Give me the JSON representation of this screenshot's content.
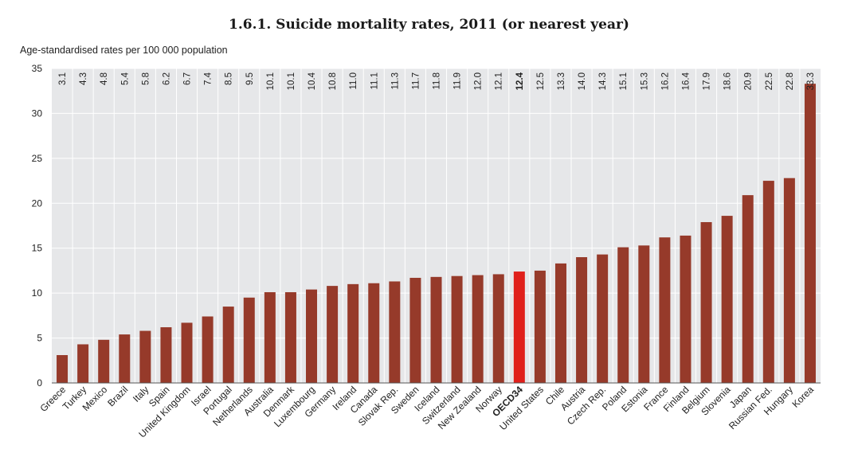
{
  "chart_data": {
    "type": "bar",
    "title": "1.6.1. Suicide mortality rates, 2011 (or nearest year)",
    "ylabel": "Age-standardised rates per 100 000 population",
    "xlabel": "",
    "ylim": [
      0,
      35
    ],
    "yticks": [
      "0",
      "5",
      "10",
      "15",
      "20",
      "25",
      "30",
      "35"
    ],
    "grid": true,
    "categories": [
      "Greece",
      "Turkey",
      "Mexico",
      "Brazil",
      "Italy",
      "Spain",
      "United Kingdom",
      "Israel",
      "Portugal",
      "Netherlands",
      "Australia",
      "Denmark",
      "Luxembourg",
      "Germany",
      "Ireland",
      "Canada",
      "Slovak Rep.",
      "Sweden",
      "Iceland",
      "Switzerland",
      "New Zealand",
      "Norway",
      "OECD34",
      "United States",
      "Chile",
      "Austria",
      "Czech Rep.",
      "Poland",
      "Estonia",
      "France",
      "Finland",
      "Belgium",
      "Slovenia",
      "Japan",
      "Russian Fed.",
      "Hungary",
      "Korea"
    ],
    "values": [
      3.1,
      4.3,
      4.8,
      5.4,
      5.8,
      6.2,
      6.7,
      7.4,
      8.5,
      9.5,
      10.1,
      10.1,
      10.4,
      10.8,
      11.0,
      11.1,
      11.3,
      11.7,
      11.8,
      11.9,
      12.0,
      12.1,
      12.4,
      12.5,
      13.3,
      14.0,
      14.3,
      15.1,
      15.3,
      16.2,
      16.4,
      17.9,
      18.6,
      20.9,
      22.5,
      22.8,
      33.3
    ],
    "value_labels": [
      "3.1",
      "4.3",
      "4.8",
      "5.4",
      "5.8",
      "6.2",
      "6.7",
      "7.4",
      "8.5",
      "9.5",
      "10.1",
      "10.1",
      "10.4",
      "10.8",
      "11.0",
      "11.1",
      "11.3",
      "11.7",
      "11.8",
      "11.9",
      "12.0",
      "12.1",
      "12.4",
      "12.5",
      "13.3",
      "14.0",
      "14.3",
      "15.1",
      "15.3",
      "16.2",
      "16.4",
      "17.9",
      "18.6",
      "20.9",
      "22.5",
      "22.8",
      "33.3"
    ],
    "highlight": "OECD34",
    "colors": {
      "bar": "#963a2a",
      "highlight": "#e0201b",
      "plot_bg": "#e6e7e9",
      "grid": "#ffffff"
    }
  }
}
